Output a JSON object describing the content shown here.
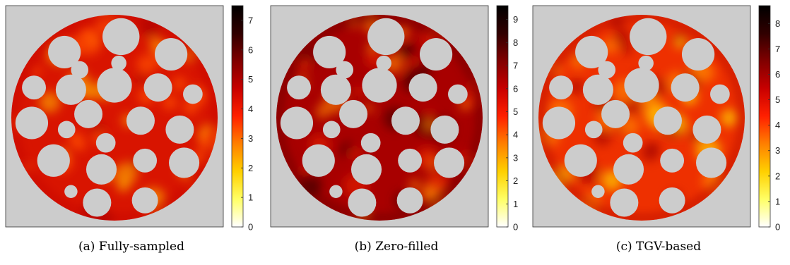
{
  "chart_data": [
    {
      "type": "heatmap",
      "caption": "(a) Fully-sampled",
      "colormap": "hot",
      "background_color": "#cccccc",
      "colorbar": {
        "min": 0,
        "max": 7.5,
        "ticks": [
          "0",
          "1",
          "2",
          "3",
          "4",
          "5",
          "6",
          "7"
        ]
      },
      "grid": false
    },
    {
      "type": "heatmap",
      "caption": "(b) Zero-filled",
      "colormap": "hot",
      "background_color": "#cccccc",
      "colorbar": {
        "min": 0,
        "max": 9.6,
        "ticks": [
          "0",
          "1",
          "2",
          "3",
          "4",
          "5",
          "6",
          "7",
          "8",
          "9"
        ]
      },
      "grid": false
    },
    {
      "type": "heatmap",
      "caption": "(c) TGV-based",
      "colormap": "hot",
      "background_color": "#cccccc",
      "colorbar": {
        "min": 0,
        "max": 8.7,
        "ticks": [
          "0",
          "1",
          "2",
          "3",
          "4",
          "5",
          "6",
          "7",
          "8"
        ]
      },
      "grid": false
    }
  ]
}
